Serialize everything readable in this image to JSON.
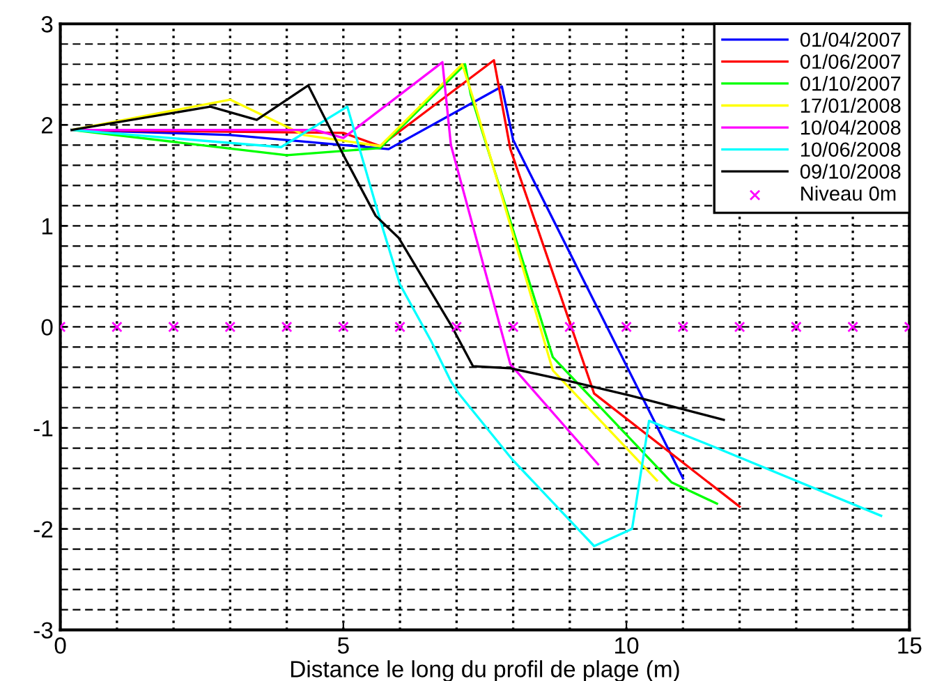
{
  "chart_data": {
    "type": "line",
    "xlabel": "Distance le long du profil de plage (m)",
    "xlim": [
      0,
      15
    ],
    "ylim": [
      -3,
      3
    ],
    "xticks": [
      0,
      5,
      10,
      15
    ],
    "yticks": [
      -3,
      -2,
      -1,
      0,
      1,
      2,
      3
    ],
    "grid": true,
    "legend": "top right",
    "line_style": "solid",
    "marker": "none",
    "series": [
      {
        "name": "01/04/2007",
        "color": "#0000ff",
        "x": [
          0.2,
          3,
          5.8,
          7.8,
          8.0,
          11.0
        ],
        "values": [
          1.95,
          1.9,
          1.76,
          2.38,
          1.85,
          -1.5
        ]
      },
      {
        "name": "01/06/2007",
        "color": "#ff0000",
        "x": [
          0.2,
          5.0,
          5.65,
          7.66,
          7.95,
          9.43,
          12.0
        ],
        "values": [
          1.95,
          1.92,
          1.79,
          2.64,
          1.76,
          -0.66,
          -1.78
        ]
      },
      {
        "name": "01/10/2007",
        "color": "#00ff00",
        "x": [
          0.2,
          4.0,
          5.65,
          7.15,
          7.25,
          8.7,
          10.8,
          11.6
        ],
        "values": [
          1.95,
          1.7,
          1.77,
          2.6,
          2.3,
          -0.3,
          -1.54,
          -1.75
        ]
      },
      {
        "name": "17/01/2008",
        "color": "#ffff00",
        "x": [
          0.2,
          3.0,
          4.3,
          5.65,
          7.1,
          7.3,
          8.7,
          10.54
        ],
        "values": [
          1.95,
          2.25,
          1.9,
          1.79,
          2.6,
          2.25,
          -0.43,
          -1.52
        ]
      },
      {
        "name": "10/04/2008",
        "color": "#ff00ff",
        "x": [
          0.2,
          4.5,
          5.0,
          6.75,
          6.9,
          7.95,
          9.5
        ],
        "values": [
          1.95,
          1.95,
          1.87,
          2.62,
          1.8,
          -0.37,
          -1.36
        ]
      },
      {
        "name": "10/06/2008",
        "color": "#00ffff",
        "x": [
          0.2,
          3.9,
          5.07,
          5.65,
          6.0,
          6.55,
          6.9,
          7.04,
          7.98,
          9.43,
          10.1,
          10.4,
          11.6,
          14.5
        ],
        "values": [
          1.95,
          1.78,
          2.18,
          1.06,
          0.42,
          -0.14,
          -0.54,
          -0.66,
          -1.31,
          -2.17,
          -2.0,
          -0.93,
          -1.2,
          -1.87
        ]
      },
      {
        "name": "09/10/2008",
        "color": "#000000",
        "x": [
          0.2,
          2.65,
          3.47,
          4.38,
          5.03,
          5.57,
          5.98,
          6.92,
          7.29,
          7.95,
          8.94,
          10.07,
          11.72
        ],
        "values": [
          1.95,
          2.18,
          2.05,
          2.39,
          1.67,
          1.1,
          0.88,
          0,
          -0.39,
          -0.41,
          -0.53,
          -0.68,
          -0.92
        ]
      },
      {
        "name": "Niveau 0m",
        "type": "scatter",
        "marker": "cross",
        "color": "#ff00ff",
        "x": [
          0,
          1,
          2,
          3,
          4,
          5,
          6,
          7,
          8,
          9,
          10,
          11,
          12,
          13,
          14,
          15
        ],
        "values": [
          0,
          0,
          0,
          0,
          0,
          0,
          0,
          0,
          0,
          0,
          0,
          0,
          0,
          0,
          0,
          0
        ]
      }
    ]
  }
}
